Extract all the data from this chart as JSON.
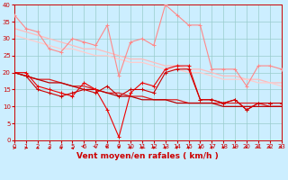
{
  "x": [
    0,
    1,
    2,
    3,
    4,
    5,
    6,
    7,
    8,
    9,
    10,
    11,
    12,
    13,
    14,
    15,
    16,
    17,
    18,
    19,
    20,
    21,
    22,
    23
  ],
  "series": [
    {
      "name": "rafales_jagged",
      "color": "#ff8888",
      "linewidth": 0.8,
      "marker": true,
      "values": [
        37,
        33,
        32,
        27,
        26,
        30,
        29,
        28,
        34,
        19,
        29,
        30,
        28,
        40,
        37,
        34,
        34,
        21,
        21,
        21,
        16,
        22,
        22,
        21
      ]
    },
    {
      "name": "trend_upper1",
      "color": "#ffbbbb",
      "linewidth": 0.9,
      "marker": false,
      "values": [
        33,
        32,
        31,
        30,
        29,
        28,
        27,
        27,
        26,
        25,
        24,
        24,
        23,
        22,
        22,
        21,
        21,
        20,
        19,
        19,
        18,
        18,
        17,
        17
      ]
    },
    {
      "name": "trend_upper2",
      "color": "#ffcccc",
      "linewidth": 0.9,
      "marker": false,
      "values": [
        31,
        30,
        29,
        28,
        27,
        27,
        26,
        25,
        25,
        24,
        23,
        23,
        22,
        21,
        21,
        20,
        20,
        19,
        18,
        18,
        18,
        17,
        17,
        16
      ]
    },
    {
      "name": "vent_jagged1",
      "color": "#ee0000",
      "linewidth": 0.8,
      "marker": true,
      "values": [
        20,
        20,
        16,
        15,
        14,
        13,
        17,
        15,
        9,
        1,
        14,
        17,
        16,
        21,
        22,
        22,
        12,
        12,
        11,
        12,
        9,
        11,
        11,
        11
      ]
    },
    {
      "name": "vent_jagged2",
      "color": "#cc0000",
      "linewidth": 0.8,
      "marker": true,
      "values": [
        20,
        19,
        15,
        14,
        13,
        14,
        15,
        14,
        16,
        13,
        15,
        15,
        14,
        20,
        21,
        21,
        12,
        12,
        11,
        12,
        9,
        11,
        11,
        11
      ]
    },
    {
      "name": "trend_lower1",
      "color": "#dd2222",
      "linewidth": 0.9,
      "marker": false,
      "values": [
        20,
        19,
        18,
        18,
        17,
        16,
        16,
        15,
        14,
        14,
        13,
        13,
        12,
        12,
        12,
        11,
        11,
        11,
        11,
        11,
        11,
        11,
        10,
        10
      ]
    },
    {
      "name": "trend_lower2",
      "color": "#bb0000",
      "linewidth": 0.9,
      "marker": false,
      "values": [
        20,
        19,
        18,
        17,
        17,
        16,
        15,
        15,
        14,
        13,
        13,
        12,
        12,
        12,
        11,
        11,
        11,
        11,
        10,
        10,
        10,
        10,
        10,
        10
      ]
    }
  ],
  "xlim": [
    0,
    23
  ],
  "ylim": [
    0,
    40
  ],
  "yticks": [
    0,
    5,
    10,
    15,
    20,
    25,
    30,
    35,
    40
  ],
  "xticks": [
    0,
    1,
    2,
    3,
    4,
    5,
    6,
    7,
    8,
    9,
    10,
    11,
    12,
    13,
    14,
    15,
    16,
    17,
    18,
    19,
    20,
    21,
    22,
    23
  ],
  "xlabel": "Vent moyen/en rafales ( km/h )",
  "xlabel_color": "#cc0000",
  "xlabel_fontsize": 6.5,
  "background_color": "#cceeff",
  "grid_color": "#99cccc",
  "tick_color": "#cc0000",
  "tick_fontsize": 5,
  "arrow_color": "#cc0000",
  "figsize": [
    3.2,
    2.0
  ],
  "dpi": 100
}
